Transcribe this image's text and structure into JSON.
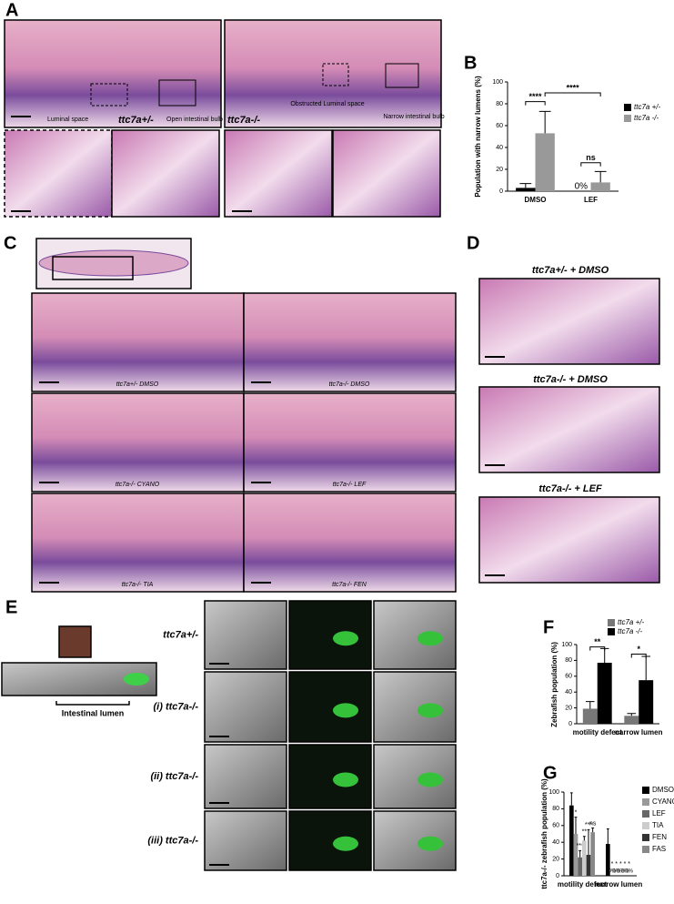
{
  "panel_a": {
    "label": "A",
    "luminal_space": "Luminal space",
    "open_bulb": "Open intestinal bulb",
    "genotype_het": "ttc7a+/-",
    "genotype_mut": "ttc7a-/-",
    "obstructed": "Obstructed Luminal space",
    "narrow_bulb": "Narrow intestinal bulb"
  },
  "panel_c": {
    "label": "C",
    "captions": [
      "ttc7a+/- DMSO",
      "ttc7a-/- DMSO",
      "ttc7a-/- CYANO",
      "ttc7a-/- LEF",
      "ttc7a-/- TIA",
      "ttc7a-/- FEN"
    ]
  },
  "panel_d": {
    "label": "D",
    "captions": [
      "ttc7a+/- + DMSO",
      "ttc7a-/- + DMSO",
      "ttc7a-/- + LEF"
    ]
  },
  "panel_e": {
    "label": "E",
    "lumen": "Intestinal lumen",
    "rows": [
      "ttc7a+/-",
      "(i) ttc7a-/-",
      "(ii) ttc7a-/-",
      "(iii) ttc7a-/-"
    ]
  },
  "chart_data": [
    {
      "type": "bar",
      "panel": "B",
      "y_label": "Population with narrow lumens (%)",
      "categories": [
        "DMSO",
        "LEF"
      ],
      "series": [
        {
          "name": "ttc7a +/-",
          "color": "#000000",
          "values": [
            3,
            0
          ],
          "errors": [
            4,
            0
          ],
          "value_labels": [
            null,
            "0%"
          ]
        },
        {
          "name": "ttc7a -/-",
          "color": "#999999",
          "values": [
            53,
            8
          ],
          "errors": [
            20,
            10
          ]
        }
      ],
      "comparisons": [
        "****",
        "****",
        "ns"
      ],
      "ylim": [
        0,
        100
      ],
      "yticks": [
        0,
        20,
        40,
        60,
        80,
        100
      ]
    },
    {
      "type": "bar",
      "panel": "F",
      "y_label": "Zebrafish population (%)",
      "categories": [
        "motility defect",
        "narrow lumen"
      ],
      "series": [
        {
          "name": "ttc7a +/-",
          "color": "#777777",
          "values": [
            19,
            10
          ],
          "errors": [
            9,
            3
          ]
        },
        {
          "name": "ttc7a -/-",
          "color": "#000000",
          "values": [
            77,
            55
          ],
          "errors": [
            18,
            30
          ]
        }
      ],
      "comparisons": [
        "**",
        "*"
      ],
      "ylim": [
        0,
        100
      ],
      "yticks": [
        0,
        20,
        40,
        60,
        80,
        100
      ]
    },
    {
      "type": "bar",
      "panel": "G",
      "y_label": "ttc7a-/- zebrafish population (%)",
      "categories": [
        "motility defect",
        "narrow lumen"
      ],
      "series": [
        {
          "name": "DMSO",
          "color": "#000000",
          "values": [
            84,
            38
          ],
          "errors": [
            15,
            18
          ]
        },
        {
          "name": "CYANO",
          "color": "#999999",
          "values": [
            50,
            0
          ],
          "errors": [
            20,
            0
          ],
          "significance": [
            "*",
            "*"
          ],
          "value_labels": [
            null,
            "0%"
          ]
        },
        {
          "name": "LEF",
          "color": "#666666",
          "values": [
            22,
            0
          ],
          "errors": [
            8,
            0
          ],
          "significance": [
            "***",
            "*"
          ],
          "value_labels": [
            null,
            "0%"
          ]
        },
        {
          "name": "TIA",
          "color": "#cccccc",
          "values": [
            42,
            0
          ],
          "errors": [
            5,
            0
          ],
          "significance": [
            "**",
            "*"
          ],
          "value_labels": [
            null,
            "0%"
          ]
        },
        {
          "name": "FEN",
          "color": "#333333",
          "values": [
            25,
            0
          ],
          "errors": [
            30,
            0
          ],
          "significance": [
            "***",
            "*"
          ],
          "value_labels": [
            null,
            "0%"
          ]
        },
        {
          "name": "FAS",
          "color": "#888888",
          "values": [
            52,
            0
          ],
          "errors": [
            5,
            0
          ],
          "significance": [
            "ns",
            "*"
          ],
          "value_labels": [
            null,
            "0%"
          ]
        }
      ],
      "ylim": [
        0,
        100
      ],
      "yticks": [
        0,
        20,
        40,
        60,
        80,
        100
      ]
    }
  ]
}
